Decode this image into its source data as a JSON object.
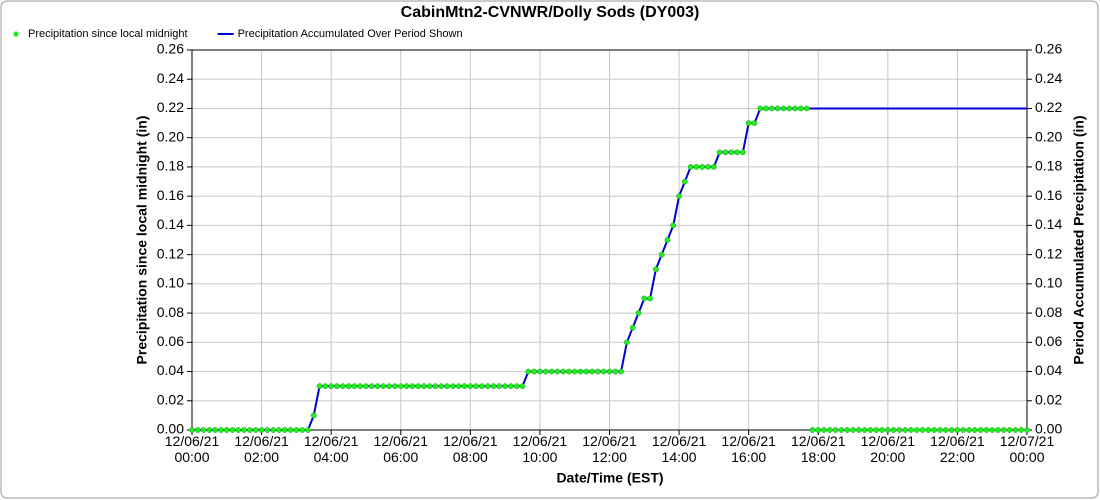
{
  "chart_data": {
    "type": "line",
    "title": "CabinMtn2-CVNWR/Dolly Sods (DY003)",
    "xlabel": "Date/Time (EST)",
    "ylabel": "Precipitation since local midnight (in)",
    "y2label": "Period Accumulated Precipitation (in)",
    "grid": true,
    "legend": "top-left",
    "x": [
      "12/06/21 00:00",
      "12/06/21 00:10",
      "12/06/21 00:20",
      "12/06/21 00:30",
      "12/06/21 00:40",
      "12/06/21 00:50",
      "12/06/21 01:00",
      "12/06/21 01:10",
      "12/06/21 01:20",
      "12/06/21 01:30",
      "12/06/21 01:40",
      "12/06/21 01:50",
      "12/06/21 02:00",
      "12/06/21 02:10",
      "12/06/21 02:20",
      "12/06/21 02:30",
      "12/06/21 02:40",
      "12/06/21 02:50",
      "12/06/21 03:00",
      "12/06/21 03:10",
      "12/06/21 03:20",
      "12/06/21 03:30",
      "12/06/21 03:40",
      "12/06/21 03:50",
      "12/06/21 04:00",
      "12/06/21 04:10",
      "12/06/21 04:20",
      "12/06/21 04:30",
      "12/06/21 04:40",
      "12/06/21 04:50",
      "12/06/21 05:00",
      "12/06/21 05:10",
      "12/06/21 05:20",
      "12/06/21 05:30",
      "12/06/21 05:40",
      "12/06/21 05:50",
      "12/06/21 06:00",
      "12/06/21 06:10",
      "12/06/21 06:20",
      "12/06/21 06:30",
      "12/06/21 06:40",
      "12/06/21 06:50",
      "12/06/21 07:00",
      "12/06/21 07:10",
      "12/06/21 07:20",
      "12/06/21 07:30",
      "12/06/21 07:40",
      "12/06/21 07:50",
      "12/06/21 08:00",
      "12/06/21 08:10",
      "12/06/21 08:20",
      "12/06/21 08:30",
      "12/06/21 08:40",
      "12/06/21 08:50",
      "12/06/21 09:00",
      "12/06/21 09:10",
      "12/06/21 09:20",
      "12/06/21 09:30",
      "12/06/21 09:40",
      "12/06/21 09:50",
      "12/06/21 10:00",
      "12/06/21 10:10",
      "12/06/21 10:20",
      "12/06/21 10:30",
      "12/06/21 10:40",
      "12/06/21 10:50",
      "12/06/21 11:00",
      "12/06/21 11:10",
      "12/06/21 11:20",
      "12/06/21 11:30",
      "12/06/21 11:40",
      "12/06/21 11:50",
      "12/06/21 12:00",
      "12/06/21 12:10",
      "12/06/21 12:20",
      "12/06/21 12:30",
      "12/06/21 12:40",
      "12/06/21 12:50",
      "12/06/21 13:00",
      "12/06/21 13:10",
      "12/06/21 13:20",
      "12/06/21 13:30",
      "12/06/21 13:40",
      "12/06/21 13:50",
      "12/06/21 14:00",
      "12/06/21 14:10",
      "12/06/21 14:20",
      "12/06/21 14:30",
      "12/06/21 14:40",
      "12/06/21 14:50",
      "12/06/21 15:00",
      "12/06/21 15:10",
      "12/06/21 15:20",
      "12/06/21 15:30",
      "12/06/21 15:40",
      "12/06/21 15:50",
      "12/06/21 16:00",
      "12/06/21 16:10",
      "12/06/21 16:20",
      "12/06/21 16:30",
      "12/06/21 16:40",
      "12/06/21 16:50",
      "12/06/21 17:00",
      "12/06/21 17:10",
      "12/06/21 17:20",
      "12/06/21 17:30",
      "12/06/21 17:40",
      "12/06/21 17:50",
      "12/06/21 18:00",
      "12/06/21 18:10",
      "12/06/21 18:20",
      "12/06/21 18:30",
      "12/06/21 18:40",
      "12/06/21 18:50",
      "12/06/21 19:00",
      "12/06/21 19:10",
      "12/06/21 19:20",
      "12/06/21 19:30",
      "12/06/21 19:40",
      "12/06/21 19:50",
      "12/06/21 20:00",
      "12/06/21 20:10",
      "12/06/21 20:20",
      "12/06/21 20:30",
      "12/06/21 20:40",
      "12/06/21 20:50",
      "12/06/21 21:00",
      "12/06/21 21:10",
      "12/06/21 21:20",
      "12/06/21 21:30",
      "12/06/21 21:40",
      "12/06/21 21:50",
      "12/06/21 22:00",
      "12/06/21 22:10",
      "12/06/21 22:20",
      "12/06/21 22:30",
      "12/06/21 22:40",
      "12/06/21 22:50",
      "12/06/21 23:00",
      "12/06/21 23:10",
      "12/06/21 23:20",
      "12/06/21 23:30",
      "12/06/21 23:40",
      "12/06/21 23:50",
      "12/07/21 00:00"
    ],
    "xlim": [
      "12/06/21 00:00",
      "12/07/21 00:00"
    ],
    "xticks": [
      "12/06/21 00:00",
      "12/06/21 02:00",
      "12/06/21 04:00",
      "12/06/21 06:00",
      "12/06/21 08:00",
      "12/06/21 10:00",
      "12/06/21 12:00",
      "12/06/21 14:00",
      "12/06/21 16:00",
      "12/06/21 18:00",
      "12/06/21 20:00",
      "12/06/21 22:00",
      "12/07/21 00:00"
    ],
    "ylim": [
      0,
      0.26
    ],
    "yticks": [
      {
        "value": 0,
        "label": "0.00"
      },
      {
        "value": 0.02,
        "label": "0.02"
      },
      {
        "value": 0.04,
        "label": "0.04"
      },
      {
        "value": 0.06,
        "label": "0.06"
      },
      {
        "value": 0.08,
        "label": "0.08"
      },
      {
        "value": 0.1,
        "label": "0.10"
      },
      {
        "value": 0.12,
        "label": "0.12"
      },
      {
        "value": 0.14,
        "label": "0.14"
      },
      {
        "value": 0.16,
        "label": "0.16"
      },
      {
        "value": 0.18,
        "label": "0.18"
      },
      {
        "value": 0.2,
        "label": "0.20"
      },
      {
        "value": 0.22,
        "label": "0.22"
      },
      {
        "value": 0.24,
        "label": "0.24"
      },
      {
        "value": 0.26,
        "label": "0.26"
      }
    ],
    "y2lim": [
      0,
      0.26
    ],
    "y2ticks": [
      {
        "value": 0,
        "label": "0.00"
      },
      {
        "value": 0.02,
        "label": "0.02"
      },
      {
        "value": 0.04,
        "label": "0.04"
      },
      {
        "value": 0.06,
        "label": "0.06"
      },
      {
        "value": 0.08,
        "label": "0.08"
      },
      {
        "value": 0.1,
        "label": "0.10"
      },
      {
        "value": 0.12,
        "label": "0.12"
      },
      {
        "value": 0.14,
        "label": "0.14"
      },
      {
        "value": 0.16,
        "label": "0.16"
      },
      {
        "value": 0.18,
        "label": "0.18"
      },
      {
        "value": 0.2,
        "label": "0.20"
      },
      {
        "value": 0.22,
        "label": "0.22"
      },
      {
        "value": 0.24,
        "label": "0.24"
      },
      {
        "value": 0.26,
        "label": "0.26"
      }
    ],
    "series": [
      {
        "name": "Precipitation since local midnight",
        "color": "#22ee22",
        "style": "markers",
        "values": [
          0,
          0,
          0,
          0,
          0,
          0,
          0,
          0,
          0,
          0,
          0,
          0,
          0,
          0,
          0,
          0,
          0,
          0,
          0,
          0,
          0,
          0.01,
          0.03,
          0.03,
          0.03,
          0.03,
          0.03,
          0.03,
          0.03,
          0.03,
          0.03,
          0.03,
          0.03,
          0.03,
          0.03,
          0.03,
          0.03,
          0.03,
          0.03,
          0.03,
          0.03,
          0.03,
          0.03,
          0.03,
          0.03,
          0.03,
          0.03,
          0.03,
          0.03,
          0.03,
          0.03,
          0.03,
          0.03,
          0.03,
          0.03,
          0.03,
          0.03,
          0.03,
          0.04,
          0.04,
          0.04,
          0.04,
          0.04,
          0.04,
          0.04,
          0.04,
          0.04,
          0.04,
          0.04,
          0.04,
          0.04,
          0.04,
          0.04,
          0.04,
          0.04,
          0.06,
          0.07,
          0.08,
          0.09,
          0.09,
          0.11,
          0.12,
          0.13,
          0.14,
          0.16,
          0.17,
          0.18,
          0.18,
          0.18,
          0.18,
          0.18,
          0.19,
          0.19,
          0.19,
          0.19,
          0.19,
          0.21,
          0.21,
          0.22,
          0.22,
          0.22,
          0.22,
          0.22,
          0.22,
          0.22,
          0.22,
          0.22,
          0,
          0,
          0,
          0,
          0,
          0,
          0,
          0,
          0,
          0,
          0,
          0,
          0,
          0,
          0,
          0,
          0,
          0,
          0,
          0,
          0,
          0,
          0,
          0,
          0,
          0,
          0,
          0,
          0,
          0,
          0,
          0,
          0,
          0,
          0,
          0,
          0,
          0
        ]
      },
      {
        "name": "Precipitation Accumulated Over Period Shown",
        "color": "#0000cc",
        "style": "line",
        "axis": "y2",
        "values": [
          0,
          0,
          0,
          0,
          0,
          0,
          0,
          0,
          0,
          0,
          0,
          0,
          0,
          0,
          0,
          0,
          0,
          0,
          0,
          0,
          0,
          0.01,
          0.03,
          0.03,
          0.03,
          0.03,
          0.03,
          0.03,
          0.03,
          0.03,
          0.03,
          0.03,
          0.03,
          0.03,
          0.03,
          0.03,
          0.03,
          0.03,
          0.03,
          0.03,
          0.03,
          0.03,
          0.03,
          0.03,
          0.03,
          0.03,
          0.03,
          0.03,
          0.03,
          0.03,
          0.03,
          0.03,
          0.03,
          0.03,
          0.03,
          0.03,
          0.03,
          0.03,
          0.04,
          0.04,
          0.04,
          0.04,
          0.04,
          0.04,
          0.04,
          0.04,
          0.04,
          0.04,
          0.04,
          0.04,
          0.04,
          0.04,
          0.04,
          0.04,
          0.04,
          0.06,
          0.07,
          0.08,
          0.09,
          0.09,
          0.11,
          0.12,
          0.13,
          0.14,
          0.16,
          0.17,
          0.18,
          0.18,
          0.18,
          0.18,
          0.18,
          0.19,
          0.19,
          0.19,
          0.19,
          0.19,
          0.21,
          0.21,
          0.22,
          0.22,
          0.22,
          0.22,
          0.22,
          0.22,
          0.22,
          0.22,
          0.22,
          0.22,
          0.22,
          0.22,
          0.22,
          0.22,
          0.22,
          0.22,
          0.22,
          0.22,
          0.22,
          0.22,
          0.22,
          0.22,
          0.22,
          0.22,
          0.22,
          0.22,
          0.22,
          0.22,
          0.22,
          0.22,
          0.22,
          0.22,
          0.22,
          0.22,
          0.22,
          0.22,
          0.22,
          0.22,
          0.22,
          0.22,
          0.22,
          0.22,
          0.22,
          0.22,
          0.22,
          0.22,
          0.22
        ]
      }
    ]
  }
}
